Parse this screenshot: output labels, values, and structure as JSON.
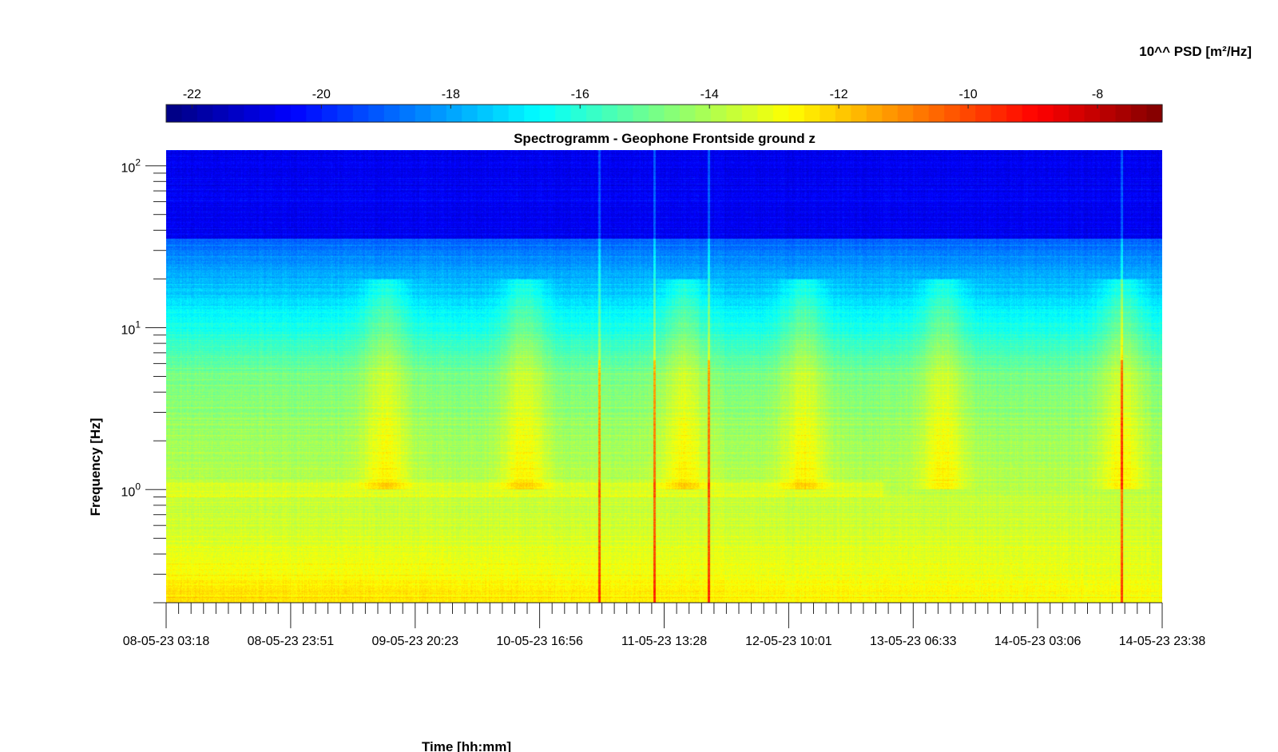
{
  "chart_data": {
    "type": "heatmap",
    "title": "Spectrogramm - Geophone Frontside ground z",
    "xlabel": "Time [hh:mm]",
    "ylabel": "Frequency [Hz]",
    "y_scale": "log",
    "ylim": [
      0.2,
      125
    ],
    "y_ticks": [
      {
        "mantissa": "10",
        "exponent": "0",
        "value": 1
      },
      {
        "mantissa": "10",
        "exponent": "1",
        "value": 10
      },
      {
        "mantissa": "10",
        "exponent": "2",
        "value": 100
      }
    ],
    "x_tick_labels": [
      "08-05-23 03:18",
      "08-05-23 23:51",
      "09-05-23 20:23",
      "10-05-23 16:56",
      "11-05-23 13:28",
      "12-05-23 10:01",
      "13-05-23 06:33",
      "14-05-23 03:06",
      "14-05-23 23:38"
    ],
    "colorbar": {
      "label": "10^^ PSD [m²/Hz]",
      "range": [
        -22.4,
        -7
      ],
      "ticks": [
        -22,
        -20,
        -18,
        -16,
        -14,
        -12,
        -10,
        -8
      ],
      "tick_labels": [
        "-22",
        "-20",
        "-18",
        "-16",
        "-14",
        "-12",
        "-10",
        "-8"
      ],
      "colormap": "jet",
      "position": "top"
    },
    "features": {
      "background_low_freq_psd": -13,
      "background_high_freq_psd": -21,
      "activity_bursts_x_fraction": [
        0.22,
        0.36,
        0.52,
        0.64,
        0.78,
        0.96
      ],
      "impulse_events_x_fraction": [
        0.435,
        0.49,
        0.545,
        0.96
      ]
    }
  }
}
